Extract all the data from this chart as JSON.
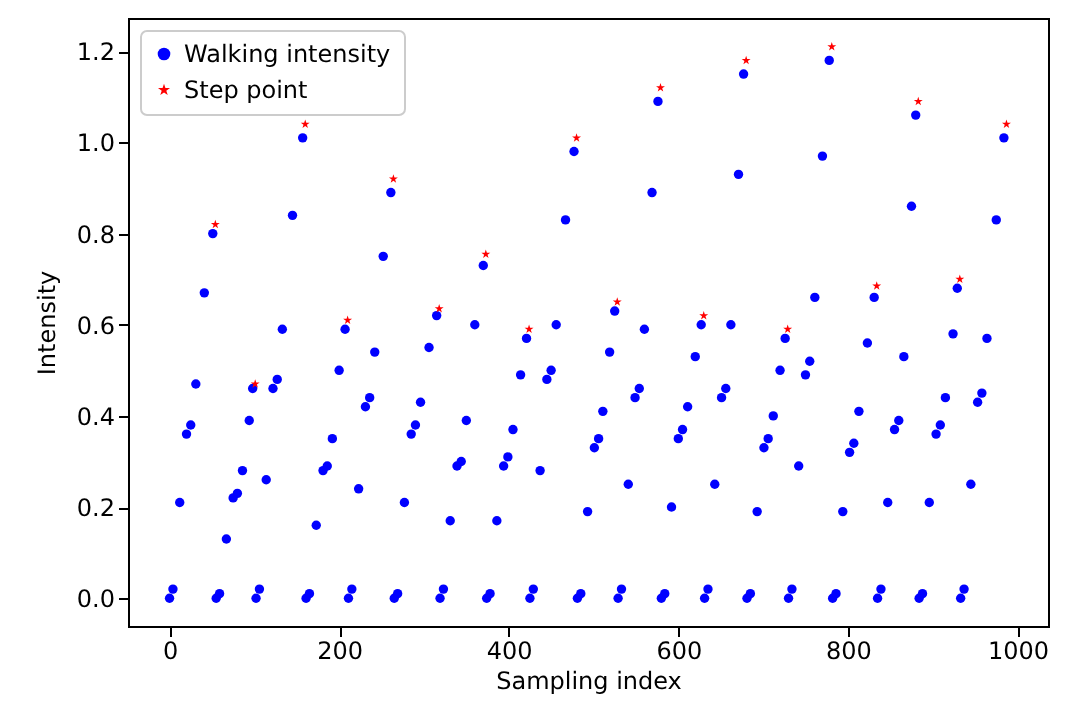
{
  "chart_data": {
    "type": "scatter",
    "xlabel": "Sampling index",
    "ylabel": "Intensity",
    "xlim": [
      -49,
      1036
    ],
    "ylim": [
      -0.061,
      1.273
    ],
    "xticks": [
      0,
      200,
      400,
      600,
      800,
      1000
    ],
    "yticks": [
      {
        "value": 0,
        "label": "0.0"
      },
      {
        "value": 0.2,
        "label": "0.2"
      },
      {
        "value": 0.4,
        "label": "0.4"
      },
      {
        "value": 0.6,
        "label": "0.6"
      },
      {
        "value": 0.8,
        "label": "0.8"
      },
      {
        "value": 1.0,
        "label": "1.0"
      },
      {
        "value": 1.2,
        "label": "1.2"
      }
    ],
    "grid": false,
    "legend": "top left",
    "series": [
      {
        "name": "Walking intensity",
        "color": "#0000ff",
        "marker": "circle",
        "x": [
          0,
          4,
          12,
          20,
          25,
          31,
          41,
          51,
          55,
          59,
          67,
          75,
          80,
          86,
          94,
          98,
          102,
          106,
          114,
          122,
          127,
          133,
          145,
          157,
          161,
          165,
          173,
          181,
          186,
          192,
          200,
          207,
          211,
          215,
          223,
          231,
          236,
          242,
          252,
          261,
          265,
          269,
          277,
          285,
          290,
          296,
          306,
          315,
          319,
          323,
          331,
          339,
          344,
          350,
          360,
          370,
          374,
          378,
          386,
          394,
          399,
          405,
          414,
          421,
          425,
          429,
          437,
          445,
          450,
          456,
          467,
          477,
          481,
          485,
          493,
          501,
          506,
          511,
          519,
          525,
          529,
          533,
          541,
          549,
          554,
          560,
          569,
          576,
          580,
          584,
          592,
          600,
          605,
          611,
          620,
          627,
          631,
          635,
          643,
          651,
          656,
          662,
          671,
          677,
          681,
          685,
          693,
          701,
          706,
          712,
          720,
          726,
          730,
          734,
          742,
          750,
          755,
          761,
          770,
          778,
          782,
          786,
          794,
          802,
          807,
          813,
          823,
          831,
          835,
          839,
          847,
          855,
          860,
          866,
          875,
          880,
          884,
          888,
          896,
          904,
          909,
          915,
          924,
          929,
          933,
          937,
          945,
          953,
          958,
          964,
          975,
          984
        ],
        "values": [
          0,
          0.02,
          0.21,
          0.36,
          0.38,
          0.47,
          0.67,
          0.8,
          0,
          0.01,
          0.13,
          0.22,
          0.23,
          0.28,
          0.39,
          0.46,
          0,
          0.02,
          0.26,
          0.46,
          0.48,
          0.59,
          0.84,
          1.01,
          0,
          0.01,
          0.16,
          0.28,
          0.29,
          0.35,
          0.5,
          0.59,
          0,
          0.02,
          0.24,
          0.42,
          0.44,
          0.54,
          0.75,
          0.89,
          0,
          0.01,
          0.21,
          0.36,
          0.38,
          0.43,
          0.55,
          0.62,
          0,
          0.02,
          0.17,
          0.29,
          0.3,
          0.39,
          0.6,
          0.73,
          0,
          0.01,
          0.17,
          0.29,
          0.31,
          0.37,
          0.49,
          0.57,
          0,
          0.02,
          0.28,
          0.48,
          0.5,
          0.6,
          0.83,
          0.98,
          0,
          0.01,
          0.19,
          0.33,
          0.35,
          0.41,
          0.54,
          0.63,
          0,
          0.02,
          0.25,
          0.44,
          0.46,
          0.59,
          0.89,
          1.09,
          0,
          0.01,
          0.2,
          0.35,
          0.37,
          0.42,
          0.53,
          0.6,
          0,
          0.02,
          0.25,
          0.44,
          0.46,
          0.6,
          0.93,
          1.15,
          0,
          0.01,
          0.19,
          0.33,
          0.35,
          0.4,
          0.5,
          0.57,
          0,
          0.02,
          0.29,
          0.49,
          0.52,
          0.66,
          0.97,
          1.18,
          0,
          0.01,
          0.19,
          0.32,
          0.34,
          0.41,
          0.56,
          0.66,
          0,
          0.02,
          0.21,
          0.37,
          0.39,
          0.53,
          0.86,
          1.06,
          0,
          0.01,
          0.21,
          0.36,
          0.38,
          0.44,
          0.58,
          0.68,
          0,
          0.02,
          0.25,
          0.43,
          0.45,
          0.57,
          0.83,
          1.01
        ]
      },
      {
        "name": "Step point",
        "color": "#ff0000",
        "marker": "star",
        "x": [
          54,
          101,
          160,
          210,
          264,
          318,
          373,
          424,
          480,
          528,
          579,
          630,
          680,
          729,
          781,
          834,
          883,
          932,
          987
        ],
        "values": [
          0.82,
          0.47,
          1.04,
          0.61,
          0.92,
          0.635,
          0.755,
          0.59,
          1.01,
          0.65,
          1.12,
          0.62,
          1.18,
          0.59,
          1.21,
          0.685,
          1.09,
          0.7,
          1.04
        ]
      }
    ]
  }
}
